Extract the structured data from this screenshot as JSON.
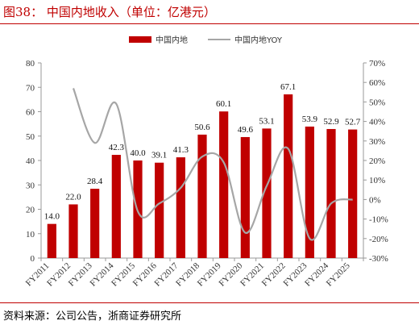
{
  "header": {
    "title": "图38：  中国内地收入（单位：亿港元）"
  },
  "footer": {
    "source": "资料来源：公司公告，浙商证券研究所"
  },
  "chart_data": {
    "type": "bar",
    "title": "",
    "xlabel": "",
    "ylabel": "",
    "categories": [
      "FY2011",
      "FY2012",
      "FY2013",
      "FY2014",
      "FY2015",
      "FY2016",
      "FY2017",
      "FY2018",
      "FY2019",
      "FY2020",
      "FY2021",
      "FY2022",
      "FY2023",
      "FY2024",
      "FY2025"
    ],
    "series": [
      {
        "name": "中国内地",
        "kind": "bar",
        "axis": "left",
        "color": "#c00000",
        "values": [
          14.0,
          22.0,
          28.4,
          42.3,
          40.0,
          39.1,
          41.3,
          50.6,
          60.1,
          49.6,
          53.1,
          67.1,
          53.9,
          52.9,
          52.7
        ],
        "labels": [
          "14.0",
          "22.0",
          "28.4",
          "42.3",
          "40.0",
          "39.1",
          "41.3",
          "50.6",
          "60.1",
          "49.6",
          "53.1",
          "67.1",
          "53.9",
          "52.9",
          "52.7"
        ]
      },
      {
        "name": "中国内地YOY",
        "kind": "line",
        "axis": "right",
        "color": "#a6a6a6",
        "unit": "%",
        "values": [
          null,
          57,
          29,
          49,
          -6,
          -2,
          6,
          22,
          19,
          -17,
          7,
          26,
          -20,
          -2,
          0
        ]
      }
    ],
    "ylim": [
      0,
      80
    ],
    "yticks": [
      "0",
      "10",
      "20",
      "30",
      "40",
      "50",
      "60",
      "70",
      "80"
    ],
    "y2lim": [
      -30,
      70
    ],
    "y2ticks": [
      "-30%",
      "-20%",
      "-10%",
      "0%",
      "10%",
      "20%",
      "30%",
      "40%",
      "50%",
      "60%",
      "70%"
    ],
    "legend": "top-center",
    "grid": false
  }
}
